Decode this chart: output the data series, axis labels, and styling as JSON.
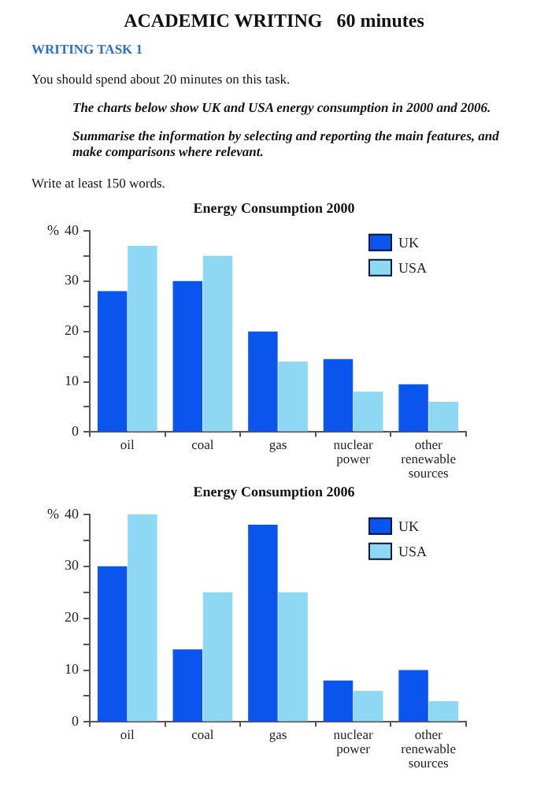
{
  "chart_data": [
    {
      "type": "bar",
      "title": "Energy Consumption 2000",
      "ylabel": "%",
      "annotations": [
        "ACADEMIC WRITING   60 minutes",
        "WRITING TASK 1",
        "You should spend about 20 minutes on this task.",
        "The charts below show UK and USA energy consumption in 2000 and 2006.",
        "Summarise the information by selecting and reporting the main features, and make comparisons where relevant.",
        "Write at least 150 words."
      ],
      "categories": [
        "oil",
        "coal",
        "gas",
        "nuclear power",
        "other renewable sources"
      ],
      "series": [
        {
          "name": "UK",
          "color": "#0a55ee",
          "values": [
            28,
            30,
            20,
            14.5,
            9.5
          ]
        },
        {
          "name": "USA",
          "color": "#8ed8f4",
          "values": [
            37,
            35,
            14,
            8,
            6
          ]
        }
      ],
      "ylim": [
        0,
        40
      ],
      "yticks": [
        0,
        {
          "value": 5,
          "label": null
        },
        10,
        {
          "value": 15,
          "label": null
        },
        20,
        {
          "value": 25,
          "label": null
        },
        30,
        {
          "value": 35,
          "label": null
        },
        40
      ],
      "grid": false,
      "legend": "top right"
    },
    {
      "type": "bar",
      "title": "Energy Consumption 2006",
      "ylabel": "%",
      "categories": [
        "oil",
        "coal",
        "gas",
        "nuclear power",
        "other renewable sources"
      ],
      "series": [
        {
          "name": "UK",
          "color": "#0a55ee",
          "values": [
            30,
            14,
            38,
            8,
            10
          ]
        },
        {
          "name": "USA",
          "color": "#8ed8f4",
          "values": [
            40,
            25,
            25,
            6,
            4
          ]
        }
      ],
      "ylim": [
        0,
        40
      ],
      "yticks": [
        0,
        {
          "value": 5,
          "label": null
        },
        10,
        {
          "value": 15,
          "label": null
        },
        20,
        {
          "value": 25,
          "label": null
        },
        30,
        {
          "value": 35,
          "label": null
        },
        40
      ],
      "grid": false,
      "legend": "top right"
    }
  ]
}
